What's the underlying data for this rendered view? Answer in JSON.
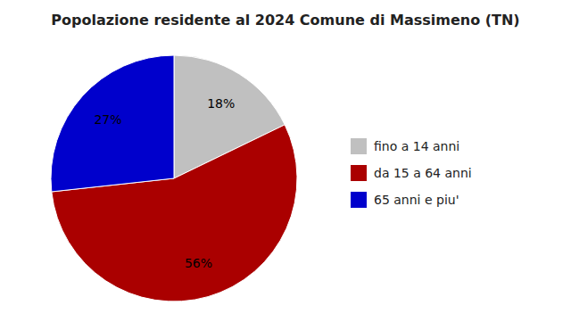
{
  "chart_data": {
    "type": "pie",
    "title": "Popolazione residente al 2024 Comune di Massimeno (TN)",
    "categories": [
      "fino a 14 anni",
      "da 15 a 64 anni",
      "65 anni e piu'"
    ],
    "values": [
      18,
      56,
      27
    ],
    "value_labels": [
      "18%",
      "56%",
      "27%"
    ],
    "colors": [
      "#c0c0c0",
      "#aa0000",
      "#0000cc"
    ],
    "data_labels": true,
    "legend": "right"
  }
}
